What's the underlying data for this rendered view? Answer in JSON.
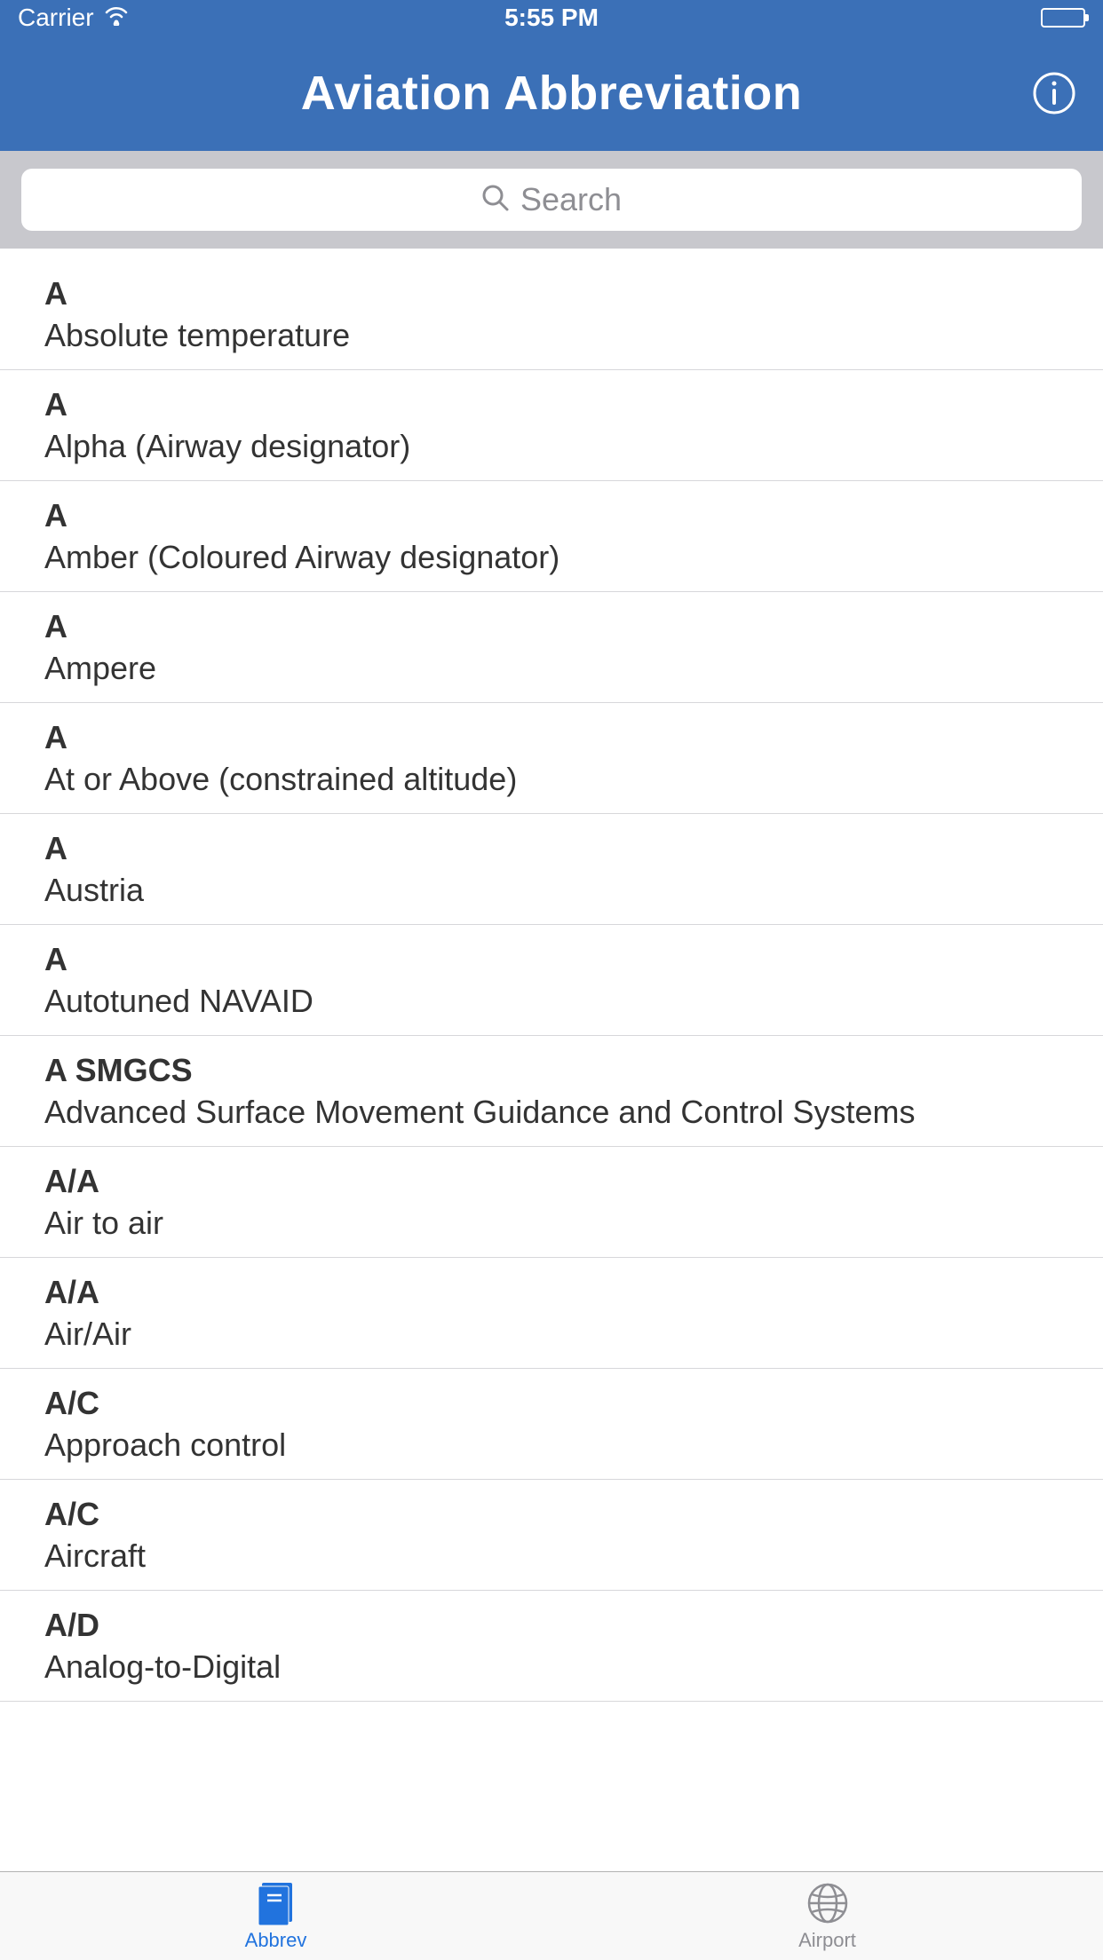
{
  "colors": {
    "nav_bg": "#3b70b7",
    "search_bg": "#c8c8cd",
    "text_primary": "#333333",
    "placeholder": "#8e8e93",
    "separator": "#d7d7da",
    "tab_active": "#2173de",
    "tab_inactive": "#8e8e93"
  },
  "status_bar": {
    "carrier": "Carrier",
    "time": "5:55 PM"
  },
  "nav": {
    "title": "Aviation Abbreviation"
  },
  "search": {
    "placeholder": "Search"
  },
  "list": {
    "items": [
      {
        "abbrev": "A",
        "meaning": "Absolute temperature"
      },
      {
        "abbrev": "A",
        "meaning": "Alpha (Airway designator)"
      },
      {
        "abbrev": "A",
        "meaning": "Amber (Coloured Airway designator)"
      },
      {
        "abbrev": "A",
        "meaning": "Ampere"
      },
      {
        "abbrev": "A",
        "meaning": "At or Above (constrained altitude)"
      },
      {
        "abbrev": "A",
        "meaning": "Austria"
      },
      {
        "abbrev": "A",
        "meaning": "Autotuned NAVAID"
      },
      {
        "abbrev": "A SMGCS",
        "meaning": "Advanced Surface Movement Guidance and Control Systems"
      },
      {
        "abbrev": "A/A",
        "meaning": "Air to air"
      },
      {
        "abbrev": "A/A",
        "meaning": "Air/Air"
      },
      {
        "abbrev": "A/C",
        "meaning": "Approach control"
      },
      {
        "abbrev": "A/C",
        "meaning": "Aircraft"
      },
      {
        "abbrev": "A/D",
        "meaning": "Analog-to-Digital"
      }
    ]
  },
  "tabs": {
    "abbrev": "Abbrev",
    "airport": "Airport"
  }
}
